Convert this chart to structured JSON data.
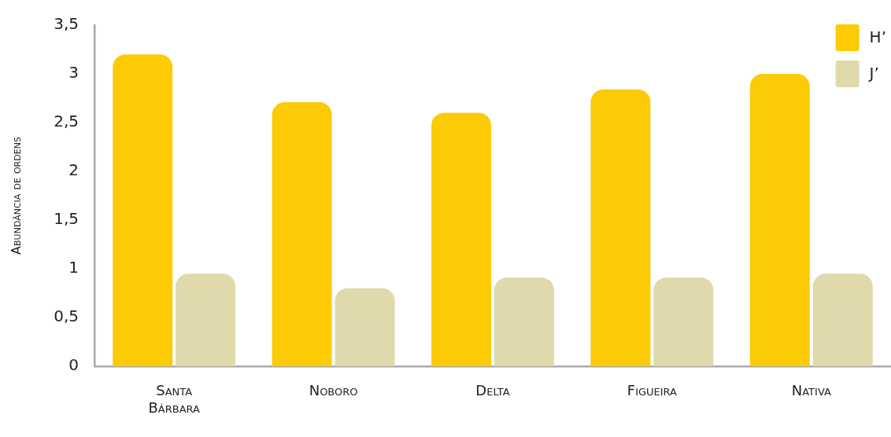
{
  "chart_data": {
    "type": "bar",
    "ylabel": "Abundância de ordens",
    "categories": [
      "Santa Bárbara",
      "Noboro",
      "Delta",
      "Figueira",
      "Nativa"
    ],
    "series": [
      {
        "name": "H’",
        "color": "#fdca06",
        "values": [
          3.2,
          2.71,
          2.6,
          2.84,
          3.0
        ]
      },
      {
        "name": "J’",
        "color": "#dfd9ab",
        "values": [
          0.95,
          0.8,
          0.91,
          0.91,
          0.95
        ]
      }
    ],
    "ylim": [
      0,
      3.5
    ],
    "yticks": [
      0,
      {
        "value": 0.5,
        "label": "0,5"
      },
      1,
      {
        "value": 1.5,
        "label": "1,5"
      },
      2,
      {
        "value": 2.5,
        "label": "2,5"
      },
      3,
      {
        "value": 3.5,
        "label": "3,5"
      }
    ],
    "grid": false,
    "legend": "top right"
  }
}
